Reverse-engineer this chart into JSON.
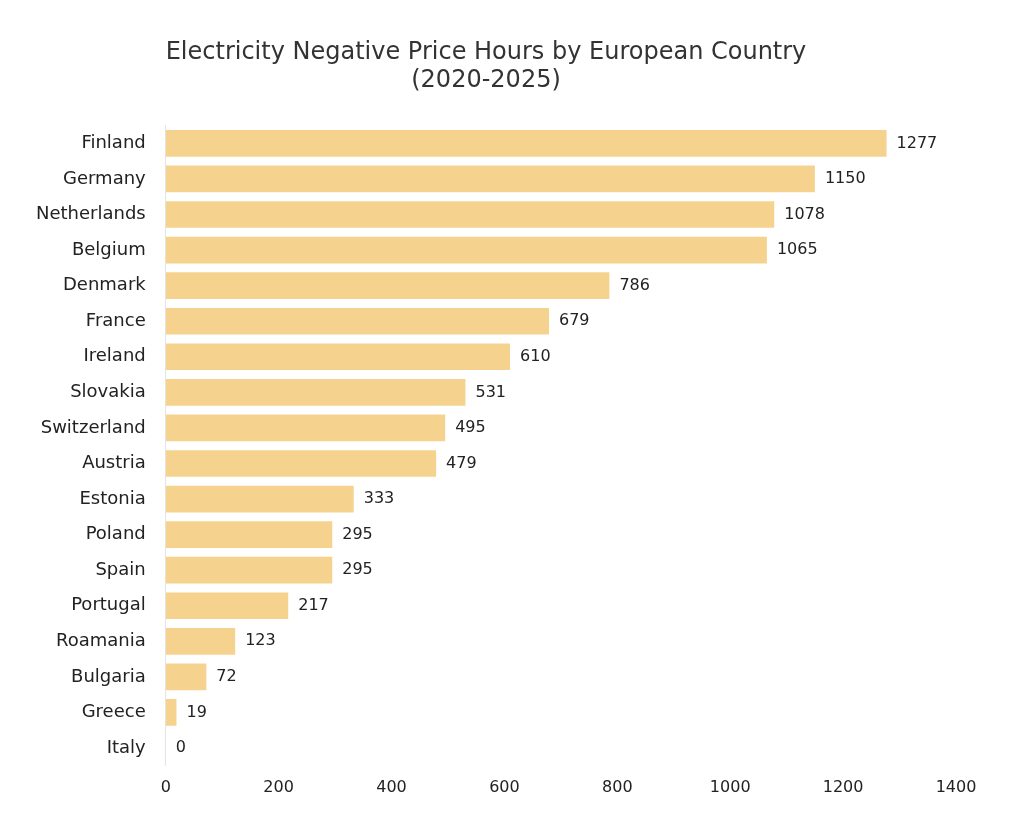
{
  "chart_data": {
    "type": "bar",
    "orientation": "horizontal",
    "title": [
      "Electricity Negative Price Hours by European Country",
      "(2020-2025)"
    ],
    "categories": [
      "Finland",
      "Germany",
      "Netherlands",
      "Belgium",
      "Denmark",
      "France",
      "Ireland",
      "Slovakia",
      "Switzerland",
      "Austria",
      "Estonia",
      "Poland",
      "Spain",
      "Portugal",
      "Roamania",
      "Bulgaria",
      "Greece",
      "Italy"
    ],
    "values": [
      1277,
      1150,
      1078,
      1065,
      786,
      679,
      610,
      531,
      495,
      479,
      333,
      295,
      295,
      217,
      123,
      72,
      19,
      0
    ],
    "color": "#f5d38f",
    "xlim": [
      0,
      1400
    ],
    "xticks": [
      0,
      200,
      400,
      600,
      800,
      1000,
      1200,
      1400
    ],
    "grid": false,
    "data_labels": true
  }
}
